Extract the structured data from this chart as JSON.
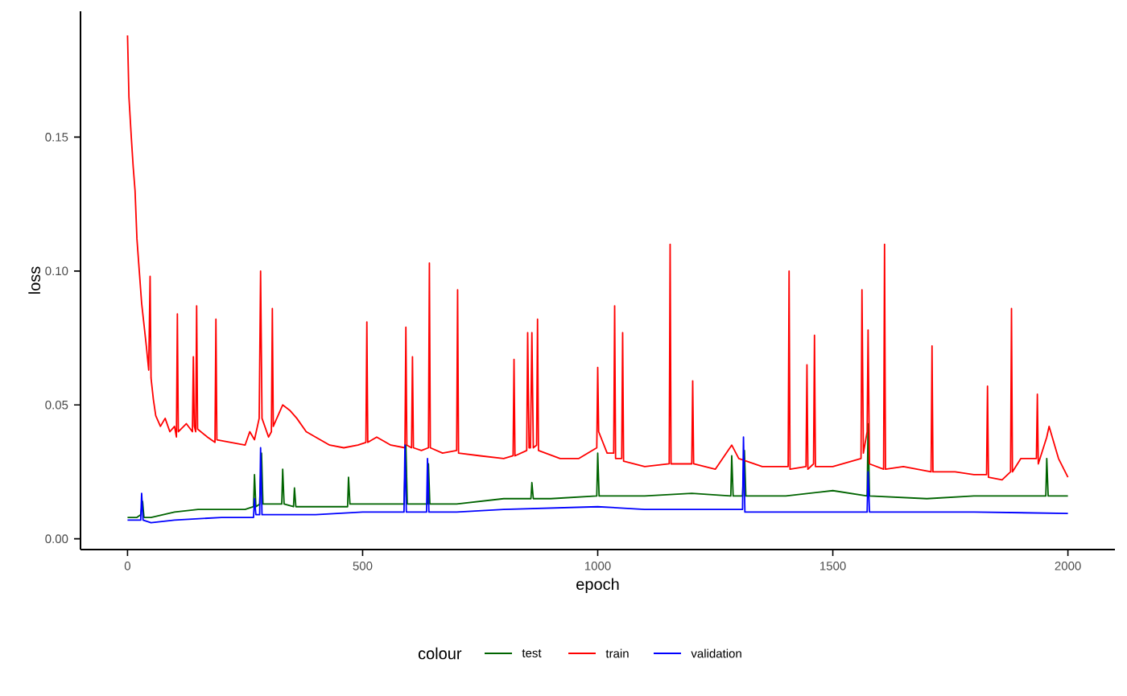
{
  "chart_data": {
    "type": "line",
    "xlabel": "epoch",
    "ylabel": "loss",
    "legend_title": "colour",
    "legend": "bottom",
    "marker": "none",
    "line_style": "solid",
    "grid": false,
    "xlim": [
      -100,
      2100
    ],
    "ylim": [
      -0.004,
      0.197
    ],
    "xticks": [
      0,
      500,
      1000,
      1500,
      2000
    ],
    "yticks": [
      {
        "value": 0,
        "label": "0.00"
      },
      {
        "value": 0.05,
        "label": "0.05"
      },
      {
        "value": 0.1,
        "label": "0.10"
      },
      {
        "value": 0.15,
        "label": "0.15"
      }
    ],
    "series": [
      {
        "name": "test",
        "color": "#006400",
        "x": [
          0,
          20,
          28,
          32,
          35,
          50,
          100,
          150,
          200,
          250,
          268,
          270,
          273,
          281,
          285,
          288,
          300,
          328,
          330,
          333,
          353,
          355,
          358,
          400,
          468,
          470,
          473,
          500,
          588,
          592,
          595,
          638,
          640,
          643,
          700,
          800,
          858,
          860,
          863,
          900,
          998,
          1000,
          1003,
          1100,
          1200,
          1283,
          1285,
          1288,
          1308,
          1312,
          1315,
          1400,
          1500,
          1573,
          1575,
          1578,
          1700,
          1800,
          1953,
          1955,
          1958,
          2000
        ],
        "values": [
          0.008,
          0.008,
          0.009,
          0.014,
          0.008,
          0.008,
          0.01,
          0.011,
          0.011,
          0.011,
          0.012,
          0.024,
          0.012,
          0.013,
          0.032,
          0.013,
          0.013,
          0.013,
          0.026,
          0.013,
          0.012,
          0.019,
          0.012,
          0.012,
          0.012,
          0.023,
          0.013,
          0.013,
          0.013,
          0.035,
          0.013,
          0.013,
          0.028,
          0.013,
          0.013,
          0.015,
          0.015,
          0.021,
          0.015,
          0.015,
          0.016,
          0.032,
          0.016,
          0.016,
          0.017,
          0.016,
          0.031,
          0.016,
          0.016,
          0.033,
          0.016,
          0.016,
          0.018,
          0.016,
          0.043,
          0.016,
          0.015,
          0.016,
          0.016,
          0.03,
          0.016,
          0.016
        ]
      },
      {
        "name": "train",
        "color": "#ff0000",
        "x": [
          0,
          3,
          8,
          12,
          16,
          20,
          25,
          30,
          35,
          40,
          45,
          48,
          50,
          55,
          60,
          70,
          80,
          90,
          100,
          104,
          106,
          108,
          125,
          138,
          140,
          142,
          145,
          147,
          149,
          170,
          186,
          188,
          190,
          220,
          250,
          260,
          270,
          280,
          283,
          286,
          300,
          306,
          308,
          310,
          330,
          345,
          360,
          380,
          400,
          430,
          460,
          490,
          507,
          509,
          511,
          530,
          560,
          590,
          592,
          594,
          604,
          606,
          608,
          625,
          640,
          642,
          644,
          670,
          700,
          702,
          704,
          750,
          800,
          820,
          822,
          824,
          849,
          851,
          854,
          857,
          860,
          863,
          870,
          872,
          874,
          920,
          960,
          998,
          1000,
          1002,
          1020,
          1034,
          1036,
          1038,
          1051,
          1053,
          1055,
          1100,
          1152,
          1154,
          1156,
          1200,
          1202,
          1204,
          1250,
          1285,
          1300,
          1350,
          1405,
          1407,
          1409,
          1443,
          1445,
          1447,
          1459,
          1461,
          1463,
          1500,
          1560,
          1562,
          1565,
          1573,
          1575,
          1578,
          1608,
          1610,
          1612,
          1650,
          1709,
          1711,
          1713,
          1760,
          1800,
          1827,
          1829,
          1831,
          1860,
          1878,
          1880,
          1882,
          1900,
          1933,
          1935,
          1937,
          1955,
          1960,
          1980,
          2000
        ],
        "values": [
          0.188,
          0.165,
          0.15,
          0.139,
          0.13,
          0.112,
          0.1,
          0.088,
          0.08,
          0.072,
          0.063,
          0.098,
          0.06,
          0.052,
          0.046,
          0.042,
          0.045,
          0.04,
          0.042,
          0.038,
          0.084,
          0.04,
          0.043,
          0.04,
          0.068,
          0.042,
          0.04,
          0.087,
          0.041,
          0.038,
          0.036,
          0.082,
          0.037,
          0.036,
          0.035,
          0.04,
          0.037,
          0.045,
          0.1,
          0.045,
          0.038,
          0.04,
          0.086,
          0.042,
          0.05,
          0.048,
          0.045,
          0.04,
          0.038,
          0.035,
          0.034,
          0.035,
          0.036,
          0.081,
          0.036,
          0.038,
          0.035,
          0.034,
          0.079,
          0.035,
          0.034,
          0.068,
          0.034,
          0.033,
          0.034,
          0.103,
          0.034,
          0.032,
          0.033,
          0.093,
          0.032,
          0.031,
          0.03,
          0.031,
          0.067,
          0.031,
          0.033,
          0.077,
          0.034,
          0.034,
          0.077,
          0.034,
          0.035,
          0.082,
          0.033,
          0.03,
          0.03,
          0.034,
          0.064,
          0.04,
          0.032,
          0.032,
          0.087,
          0.03,
          0.03,
          0.077,
          0.029,
          0.027,
          0.028,
          0.11,
          0.028,
          0.028,
          0.059,
          0.028,
          0.026,
          0.035,
          0.03,
          0.027,
          0.027,
          0.1,
          0.026,
          0.027,
          0.065,
          0.026,
          0.028,
          0.076,
          0.027,
          0.027,
          0.03,
          0.093,
          0.032,
          0.04,
          0.078,
          0.028,
          0.026,
          0.11,
          0.026,
          0.027,
          0.025,
          0.072,
          0.025,
          0.025,
          0.024,
          0.024,
          0.057,
          0.023,
          0.022,
          0.025,
          0.086,
          0.025,
          0.03,
          0.03,
          0.054,
          0.028,
          0.038,
          0.042,
          0.03,
          0.023
        ]
      },
      {
        "name": "validation",
        "color": "#0000ff",
        "x": [
          0,
          20,
          28,
          30,
          33,
          50,
          100,
          200,
          268,
          270,
          273,
          281,
          283,
          286,
          400,
          500,
          588,
          590,
          593,
          636,
          638,
          641,
          700,
          800,
          1000,
          1100,
          1200,
          1308,
          1310,
          1313,
          1400,
          1500,
          1573,
          1575,
          1578,
          1800,
          2000
        ],
        "values": [
          0.007,
          0.007,
          0.007,
          0.017,
          0.007,
          0.006,
          0.007,
          0.008,
          0.008,
          0.015,
          0.009,
          0.009,
          0.034,
          0.009,
          0.009,
          0.01,
          0.01,
          0.035,
          0.01,
          0.01,
          0.03,
          0.01,
          0.01,
          0.011,
          0.012,
          0.011,
          0.011,
          0.011,
          0.038,
          0.01,
          0.01,
          0.01,
          0.01,
          0.025,
          0.01,
          0.01,
          0.0095
        ]
      }
    ]
  }
}
